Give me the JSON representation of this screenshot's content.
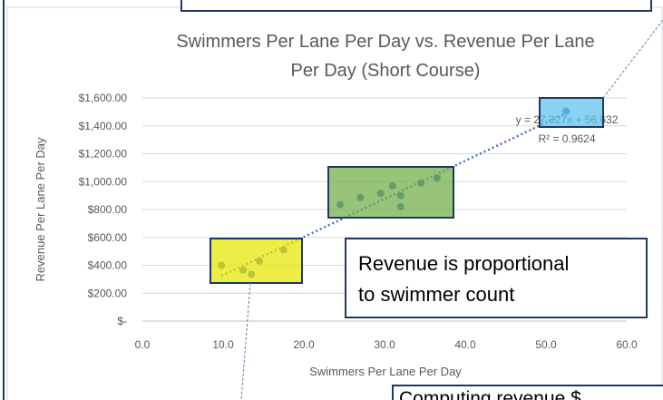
{
  "chart_data": {
    "type": "scatter",
    "title": [
      "Swimmers Per Lane Per Day vs. Revenue Per Lane",
      "Per Day (Short Course)"
    ],
    "x_label": "Swimmers Per Lane Per Day",
    "y_label": "Revenue Per Lane Per Day",
    "series": [
      {
        "name": "Revenue",
        "color": "#4472c4",
        "x": [
          9.8,
          12.5,
          13.5,
          14.5,
          17.5,
          24.5,
          27,
          29.5,
          31,
          32,
          32,
          34.5,
          36.5,
          52.5
        ],
        "values": [
          400,
          365,
          335,
          430,
          510,
          835,
          885,
          915,
          970,
          900,
          820,
          990,
          1025,
          1505
        ]
      }
    ],
    "trendline": {
      "slope": 27.327,
      "intercept": 56.632,
      "label": "y = 27.327x + 56.632",
      "r2_label": "R² = 0.9624"
    },
    "xlim": [
      0,
      60
    ],
    "xticks": [
      {
        "value": 0,
        "label": "0.0"
      },
      {
        "value": 10,
        "label": "10.0"
      },
      {
        "value": 20,
        "label": "20.0"
      },
      {
        "value": 30,
        "label": "30.0"
      },
      {
        "value": 40,
        "label": "40.0"
      },
      {
        "value": 50,
        "label": "50.0"
      },
      {
        "value": 60,
        "label": "60.0"
      }
    ],
    "ylim": [
      0,
      1600
    ],
    "yticks": [
      {
        "value": 0,
        "label": "$-"
      },
      {
        "value": 200,
        "label": "$200.00"
      },
      {
        "value": 400,
        "label": "$400.00"
      },
      {
        "value": 600,
        "label": "$600.00"
      },
      {
        "value": 800,
        "label": "$800.00"
      },
      {
        "value": 1000,
        "label": "$1,000.00"
      },
      {
        "value": 1200,
        "label": "$1,200.00"
      },
      {
        "value": 1400,
        "label": "$1,400.00"
      },
      {
        "value": 1600,
        "label": "$1,600.00"
      }
    ],
    "grid": true
  },
  "callouts": {
    "main": [
      "Revenue is proportional",
      "to swimmer count"
    ],
    "bottom": "Computing revenue $"
  }
}
